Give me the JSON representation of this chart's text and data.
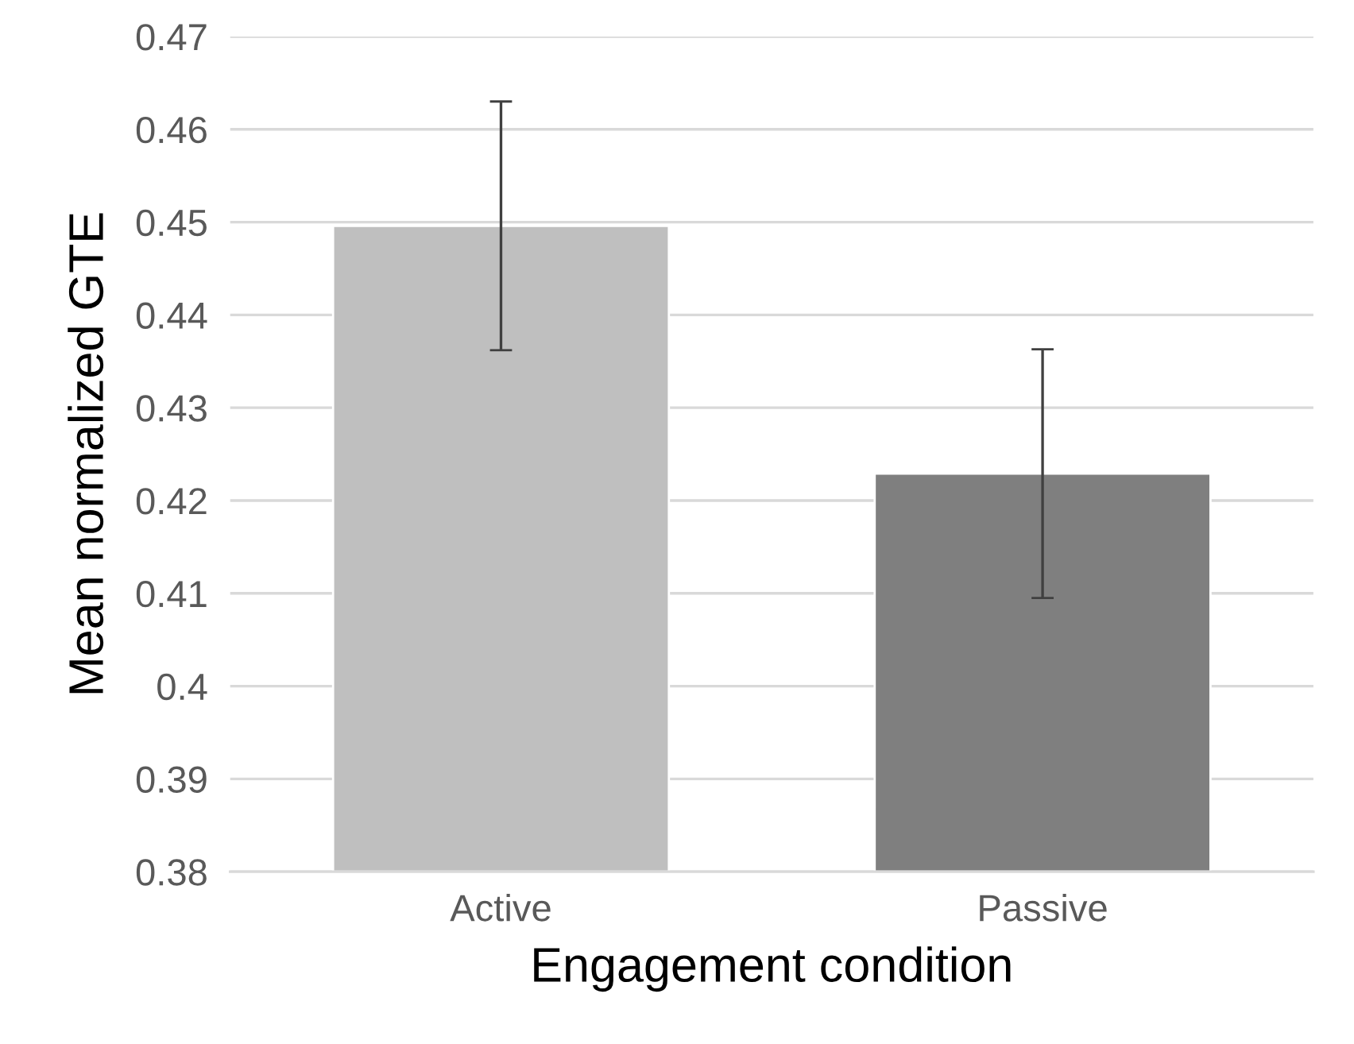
{
  "chart_data": {
    "type": "bar",
    "xlabel": "Engagement condition",
    "ylabel": "Mean normalized GTE",
    "categories": [
      "Active",
      "Passive"
    ],
    "values": [
      0.4496,
      0.4229
    ],
    "colors": [
      "#bfbfbf",
      "#7f7f7f"
    ],
    "errors": [
      0.0134,
      0.0134
    ],
    "ylim": [
      0.38,
      0.47
    ],
    "yticks": [
      {
        "value": 0.38,
        "label": "0.38"
      },
      {
        "value": 0.39,
        "label": "0.39"
      },
      {
        "value": 0.4,
        "label": "0.4"
      },
      {
        "value": 0.41,
        "label": "0.41"
      },
      {
        "value": 0.42,
        "label": "0.42"
      },
      {
        "value": 0.43,
        "label": "0.43"
      },
      {
        "value": 0.44,
        "label": "0.44"
      },
      {
        "value": 0.45,
        "label": "0.45"
      },
      {
        "value": 0.46,
        "label": "0.46"
      },
      {
        "value": 0.47,
        "label": "0.47"
      }
    ],
    "grid": "y",
    "legend": false
  }
}
